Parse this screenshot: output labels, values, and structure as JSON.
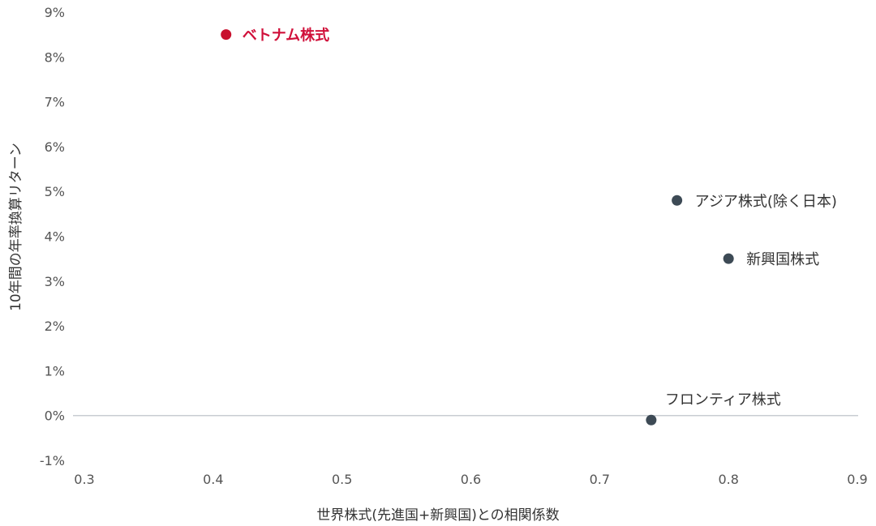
{
  "chart_data": {
    "type": "scatter",
    "xlabel": "世界株式(先進国+新興国)との相関係数",
    "ylabel": "10年間の年率換算リターン",
    "xlim": [
      0.3,
      0.9
    ],
    "ylim": [
      -1,
      9
    ],
    "x_ticks": [
      0.3,
      0.4,
      0.5,
      0.6,
      0.7,
      0.8,
      0.9
    ],
    "x_tick_labels": [
      "0.3",
      "0.4",
      "0.5",
      "0.6",
      "0.7",
      "0.8",
      "0.9"
    ],
    "y_ticks": [
      -1,
      0,
      1,
      2,
      3,
      4,
      5,
      6,
      7,
      8,
      9
    ],
    "y_tick_labels": [
      "-1%",
      "0%",
      "1%",
      "2%",
      "3%",
      "4%",
      "5%",
      "6%",
      "7%",
      "8%",
      "9%"
    ],
    "grid": false,
    "zero_line": true,
    "points": [
      {
        "label": "ベトナム株式",
        "x": 0.41,
        "y": 8.5,
        "color": "#c8102e",
        "highlight": true
      },
      {
        "label": "アジア株式(除く日本)",
        "x": 0.76,
        "y": 4.8,
        "color": "#3d4a55",
        "highlight": false
      },
      {
        "label": "新興国株式",
        "x": 0.8,
        "y": 3.5,
        "color": "#3d4a55",
        "highlight": false
      },
      {
        "label": "フロンティア株式",
        "x": 0.74,
        "y": -0.1,
        "color": "#3d4a55",
        "highlight": false
      }
    ]
  }
}
